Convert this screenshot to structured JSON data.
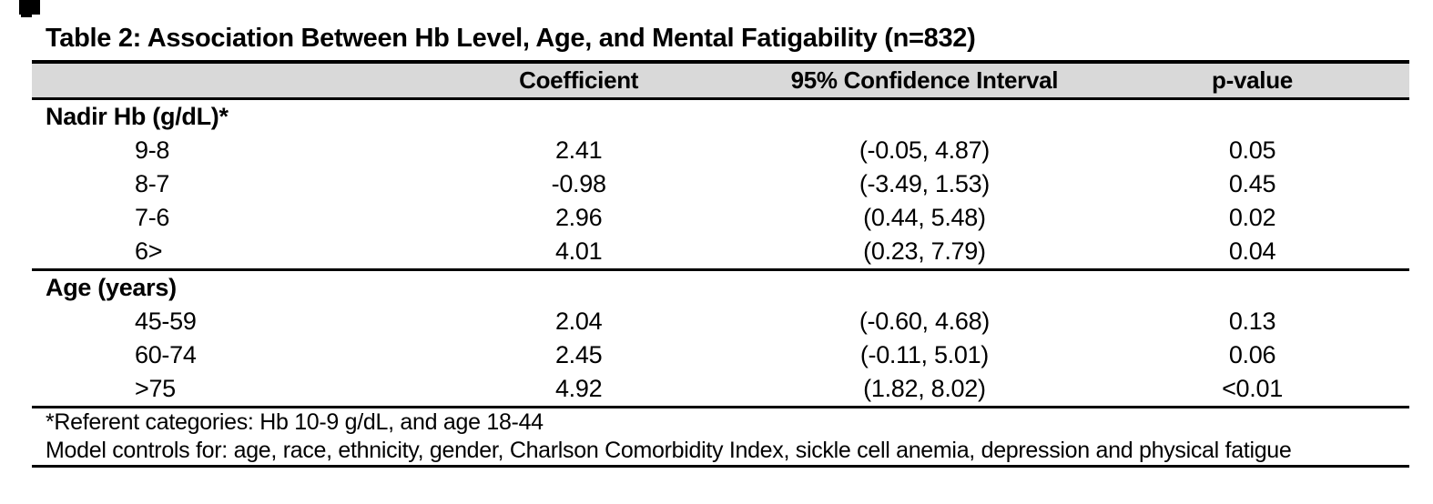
{
  "title": "Table 2: Association Between Hb Level, Age, and Mental Fatigability (n=832)",
  "colors": {
    "header_background": "#d9d9d9",
    "rule": "#000000",
    "text": "#000000",
    "page_background": "#ffffff"
  },
  "table": {
    "columns": {
      "label": "",
      "coefficient": "Coefficient",
      "ci": "95% Confidence Interval",
      "p_value": "p-value"
    },
    "sections": [
      {
        "header": "Nadir Hb (g/dL)*",
        "rows": [
          {
            "label": "9-8",
            "coefficient": "2.41",
            "ci": "(-0.05, 4.87)",
            "p": "0.05"
          },
          {
            "label": "8-7",
            "coefficient": "-0.98",
            "ci": "(-3.49, 1.53)",
            "p": "0.45"
          },
          {
            "label": "7-6",
            "coefficient": "2.96",
            "ci": "(0.44, 5.48)",
            "p": "0.02"
          },
          {
            "label": "6>",
            "coefficient": "4.01",
            "ci": "(0.23, 7.79)",
            "p": "0.04"
          }
        ]
      },
      {
        "header": "Age (years)",
        "rows": [
          {
            "label": "45-59",
            "coefficient": "2.04",
            "ci": "(-0.60, 4.68)",
            "p": "0.13"
          },
          {
            "label": "60-74",
            "coefficient": "2.45",
            "ci": "(-0.11, 5.01)",
            "p": "0.06"
          },
          {
            "label": ">75",
            "coefficient": "4.92",
            "ci": "(1.82, 8.02)",
            "p": "<0.01"
          }
        ]
      }
    ],
    "footnotes": [
      "*Referent categories: Hb 10-9 g/dL, and age 18-44",
      "Model controls for: age, race, ethnicity, gender, Charlson Comorbidity Index, sickle cell anemia, depression and physical fatigue"
    ]
  },
  "chart_data": {
    "type": "table",
    "title": "Table 2: Association Between Hb Level, Age, and Mental Fatigability (n=832)",
    "columns": [
      "Coefficient",
      "95% Confidence Interval",
      "p-value"
    ],
    "groups": [
      {
        "name": "Nadir Hb (g/dL)*",
        "rows": [
          [
            "9-8",
            2.41,
            "(-0.05, 4.87)",
            0.05
          ],
          [
            "8-7",
            -0.98,
            "(-3.49, 1.53)",
            0.45
          ],
          [
            "7-6",
            2.96,
            "(0.44, 5.48)",
            0.02
          ],
          [
            "6>",
            4.01,
            "(0.23, 7.79)",
            0.04
          ]
        ]
      },
      {
        "name": "Age (years)",
        "rows": [
          [
            "45-59",
            2.04,
            "(-0.60, 4.68)",
            0.13
          ],
          [
            "60-74",
            2.45,
            "(-0.11, 5.01)",
            0.06
          ],
          [
            ">75",
            4.92,
            "(1.82, 8.02)",
            "<0.01"
          ]
        ]
      }
    ]
  }
}
